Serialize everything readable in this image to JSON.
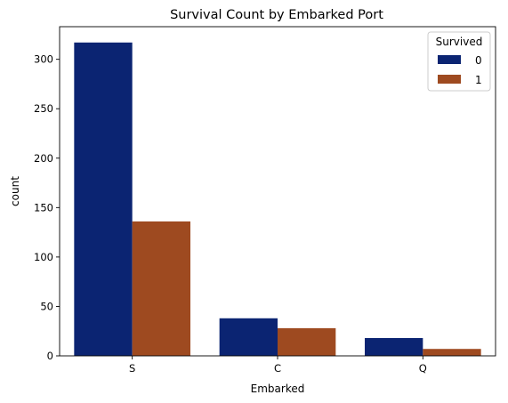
{
  "chart_data": {
    "type": "bar",
    "title": "Survival Count by Embarked Port",
    "xlabel": "Embarked",
    "ylabel": "count",
    "categories": [
      "S",
      "C",
      "Q"
    ],
    "series": [
      {
        "name": "0",
        "values": [
          317,
          38,
          18
        ],
        "color": "#0b2472"
      },
      {
        "name": "1",
        "values": [
          136,
          28,
          7
        ],
        "color": "#9e4a20"
      }
    ],
    "ylim": [
      0,
      333
    ],
    "yticks": [
      0,
      50,
      100,
      150,
      200,
      250,
      300
    ],
    "legend": {
      "title": "Survived",
      "position": "top-right"
    },
    "grid": false
  }
}
